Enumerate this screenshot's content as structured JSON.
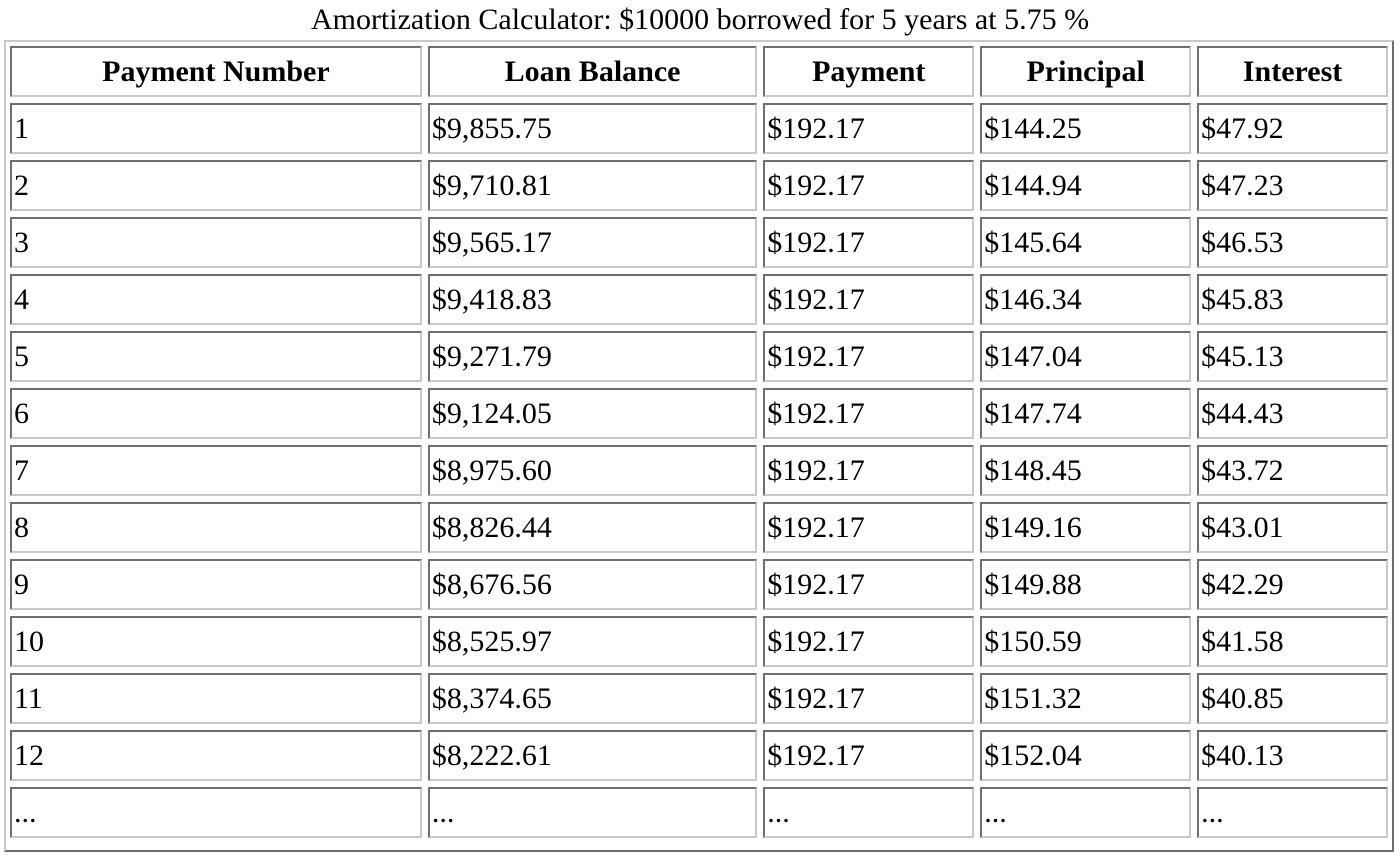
{
  "caption": "Amortization Calculator: $10000 borrowed for 5 years at 5.75 %",
  "table": {
    "headers": [
      "Payment Number",
      "Loan Balance",
      "Payment",
      "Principal",
      "Interest"
    ],
    "rows": [
      [
        "1",
        "$9,855.75",
        "$192.17",
        "$144.25",
        "$47.92"
      ],
      [
        "2",
        "$9,710.81",
        "$192.17",
        "$144.94",
        "$47.23"
      ],
      [
        "3",
        "$9,565.17",
        "$192.17",
        "$145.64",
        "$46.53"
      ],
      [
        "4",
        "$9,418.83",
        "$192.17",
        "$146.34",
        "$45.83"
      ],
      [
        "5",
        "$9,271.79",
        "$192.17",
        "$147.04",
        "$45.13"
      ],
      [
        "6",
        "$9,124.05",
        "$192.17",
        "$147.74",
        "$44.43"
      ],
      [
        "7",
        "$8,975.60",
        "$192.17",
        "$148.45",
        "$43.72"
      ],
      [
        "8",
        "$8,826.44",
        "$192.17",
        "$149.16",
        "$43.01"
      ],
      [
        "9",
        "$8,676.56",
        "$192.17",
        "$149.88",
        "$42.29"
      ],
      [
        "10",
        "$8,525.97",
        "$192.17",
        "$150.59",
        "$41.58"
      ],
      [
        "11",
        "$8,374.65",
        "$192.17",
        "$151.32",
        "$40.85"
      ],
      [
        "12",
        "$8,222.61",
        "$192.17",
        "$152.04",
        "$40.13"
      ],
      [
        "...",
        "...",
        "...",
        "...",
        "..."
      ]
    ]
  }
}
